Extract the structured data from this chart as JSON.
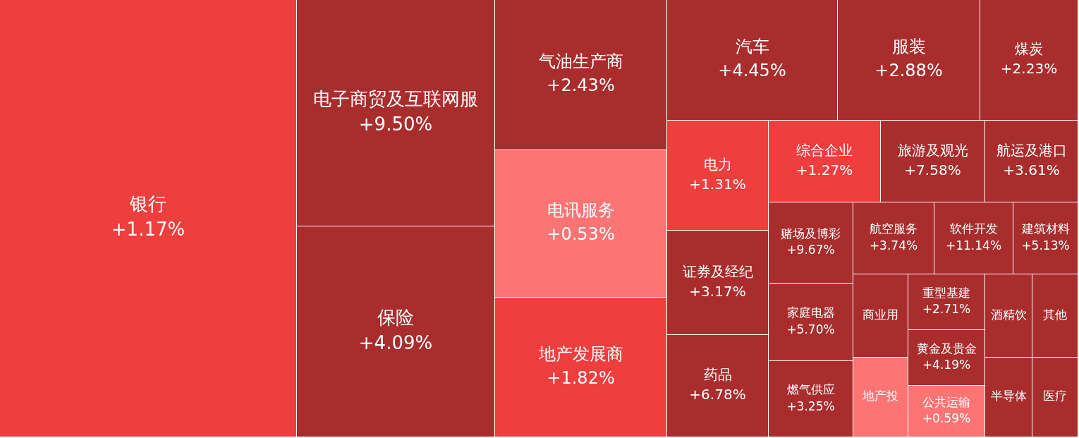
{
  "chart_data": {
    "type": "other",
    "categories": [
      "银行",
      "电子商贸及互联网服",
      "保险",
      "气油生产商",
      "电讯服务",
      "地产发展商",
      "汽车",
      "服装",
      "煤炭",
      "电力",
      "综合企业",
      "旅游及观光",
      "航运及港口",
      "证券及经纪",
      "药品",
      "赌场及博彩",
      "航空服务",
      "软件开发",
      "建筑材料",
      "家庭电器",
      "燃气供应",
      "商业用",
      "地产投",
      "重型基建",
      "黄金及贵金",
      "公共运输",
      "酒精饮",
      "其他",
      "半导体",
      "医疗"
    ],
    "values": [
      1.17,
      9.5,
      4.09,
      2.43,
      0.53,
      1.82,
      4.45,
      2.88,
      2.23,
      1.31,
      1.27,
      7.58,
      3.61,
      3.17,
      6.78,
      9.67,
      3.74,
      11.14,
      5.13,
      5.7,
      3.25,
      null,
      null,
      2.71,
      4.19,
      0.59,
      null,
      null,
      null,
      null
    ],
    "value_labels": [
      "+1.17%",
      "+9.50%",
      "+4.09%",
      "+2.43%",
      "+0.53%",
      "+1.82%",
      "+4.45%",
      "+2.88%",
      "+2.23%",
      "+1.31%",
      "+1.27%",
      "+7.58%",
      "+3.61%",
      "+3.17%",
      "+6.78%",
      "+9.67%",
      "+3.74%",
      "+11.14%",
      "+5.13%",
      "+5.70%",
      "+3.25%",
      null,
      null,
      "+2.71%",
      "+4.19%",
      "+0.59%",
      null,
      null,
      null,
      null
    ],
    "colors": [
      "#ef3e3e",
      "#a92d2d",
      "#a92d2d",
      "#a92d2d",
      "#fd7474",
      "#ef3e3e",
      "#a92d2d",
      "#a92d2d",
      "#a92d2d",
      "#ef3e3e",
      "#ef3e3e",
      "#a92d2d",
      "#a92d2d",
      "#a92d2d",
      "#a92d2d",
      "#a92d2d",
      "#a92d2d",
      "#a92d2d",
      "#a92d2d",
      "#a92d2d",
      "#a92d2d",
      "#a92d2d",
      "#fd7474",
      "#a92d2d",
      "#a92d2d",
      "#fd7474",
      "#a92d2d",
      "#a92d2d",
      "#a92d2d",
      "#a92d2d"
    ]
  }
}
